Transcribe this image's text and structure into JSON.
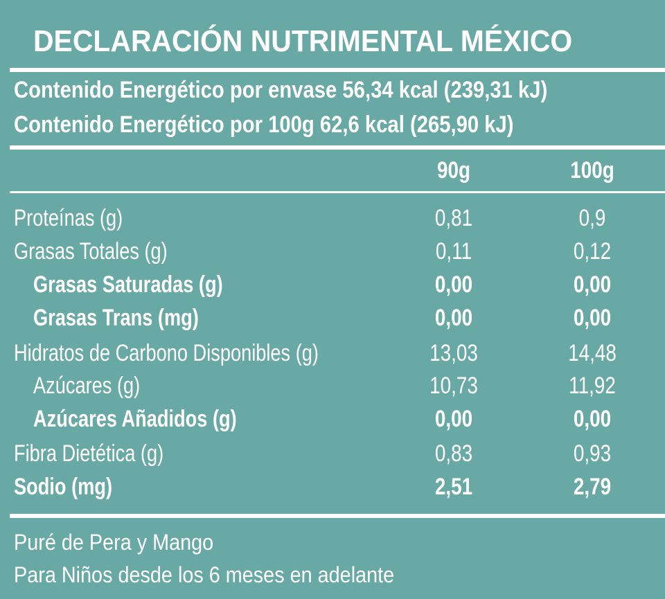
{
  "header": {
    "title": "DECLARACIÓN NUTRIMENTAL MÉXICO",
    "energy": [
      "Contenido Energético por envase 56,34 kcal (239,31 kJ)",
      "Contenido Energético por 100g 62,6 kcal (265,90 kJ)"
    ]
  },
  "table": {
    "columns": [
      "90g",
      "100g"
    ],
    "rows": [
      [
        "Proteínas (g)",
        "0,81",
        "0,9"
      ],
      [
        "Grasas Totales (g)",
        "0,11",
        "0,12"
      ],
      [
        "Grasas Saturadas (g)",
        "0,00",
        "0,00"
      ],
      [
        "Grasas Trans (mg)",
        "0,00",
        "0,00"
      ],
      [
        "Hidratos de Carbono Disponibles (g)",
        "13,03",
        "14,48"
      ],
      [
        "Azúcares (g)",
        "10,73",
        "11,92"
      ],
      [
        "Azúcares Añadidos (g)",
        "0,00",
        "0,00"
      ],
      [
        "Fibra Dietética (g)",
        "0,83",
        "0,93"
      ],
      [
        "Sodio (mg)",
        "2,51",
        "2,79"
      ]
    ]
  },
  "footer": [
    "Puré de Pera y Mango",
    "Para Niños desde los 6 meses en adelante"
  ]
}
